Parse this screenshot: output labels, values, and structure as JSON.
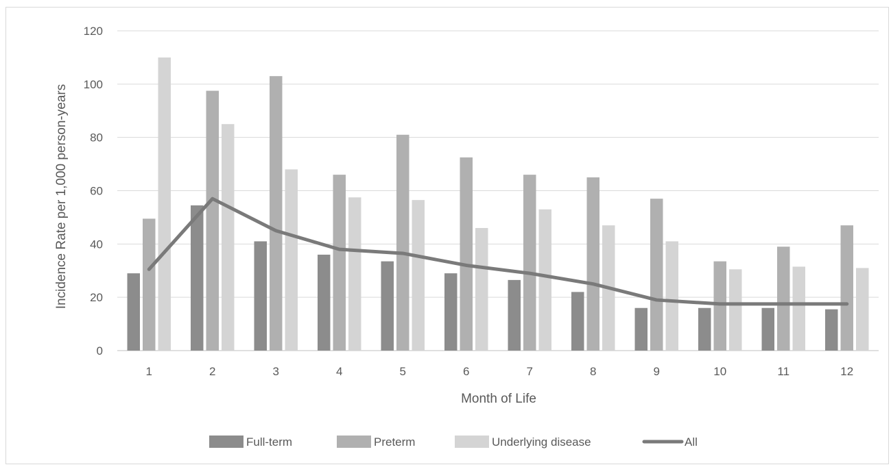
{
  "chart_data": {
    "type": "bar",
    "combo": "bar + line",
    "title": "",
    "xlabel": "Month of Life",
    "ylabel": "Incidence Rate per 1,000 person-years",
    "ylim": [
      0,
      120
    ],
    "yticks": [
      0,
      20,
      40,
      60,
      80,
      100,
      120
    ],
    "grid": true,
    "legend_position": "bottom",
    "categories": [
      "1",
      "2",
      "3",
      "4",
      "5",
      "6",
      "7",
      "8",
      "9",
      "10",
      "11",
      "12"
    ],
    "series": [
      {
        "name": "Full-term",
        "type": "bar",
        "color": "#8c8c8c",
        "values": [
          29,
          54.5,
          41,
          36,
          33.5,
          29,
          26.5,
          22,
          16,
          16,
          16,
          15.5
        ]
      },
      {
        "name": "Preterm",
        "type": "bar",
        "color": "#b0b0b0",
        "values": [
          49.5,
          97.5,
          103,
          66,
          81,
          72.5,
          66,
          65,
          57,
          33.5,
          39,
          47
        ]
      },
      {
        "name": "Underlying disease",
        "type": "bar",
        "color": "#d4d4d4",
        "values": [
          110,
          85,
          68,
          57.5,
          56.5,
          46,
          53,
          47,
          41,
          30.5,
          31.5,
          31
        ]
      },
      {
        "name": "All",
        "type": "line",
        "color": "#7a7a7a",
        "values": [
          30.5,
          57,
          45,
          38,
          36.5,
          32,
          29,
          25,
          19,
          17.5,
          17.5,
          17.5
        ]
      }
    ]
  }
}
